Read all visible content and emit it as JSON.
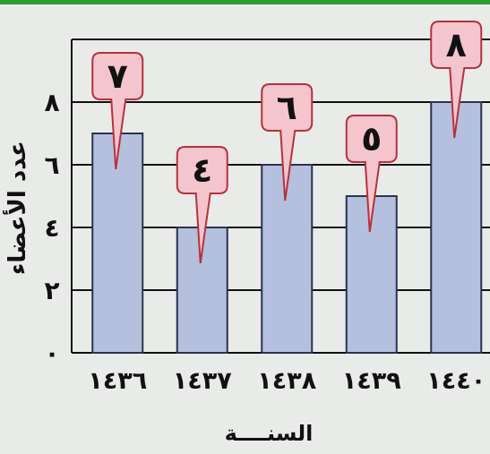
{
  "chart_data": {
    "type": "bar",
    "categories": [
      "١٤٣٦",
      "١٤٣٧",
      "١٤٣٨",
      "١٤٣٩",
      "١٤٤٠"
    ],
    "values": [
      7,
      4,
      6,
      5,
      8
    ],
    "value_labels": [
      "٧",
      "٤",
      "٦",
      "٥",
      "٨"
    ],
    "y_ticks": [
      0,
      2,
      4,
      6,
      8
    ],
    "y_tick_labels": [
      "٠",
      "٢",
      "٤",
      "٦",
      "٨"
    ],
    "ylim": [
      0,
      10
    ],
    "xlabel": "السنــــة",
    "ylabel": "عدد الأعضاء",
    "grid": true,
    "colors": {
      "bar_fill": "#b4c0dd",
      "bar_stroke": "#2a3350",
      "callout_fill": "#f4c5cc",
      "callout_stroke": "#b5323e",
      "grid": "#111111",
      "background": "#e9ebe9",
      "accent_bar": "#2f9a2f"
    }
  }
}
